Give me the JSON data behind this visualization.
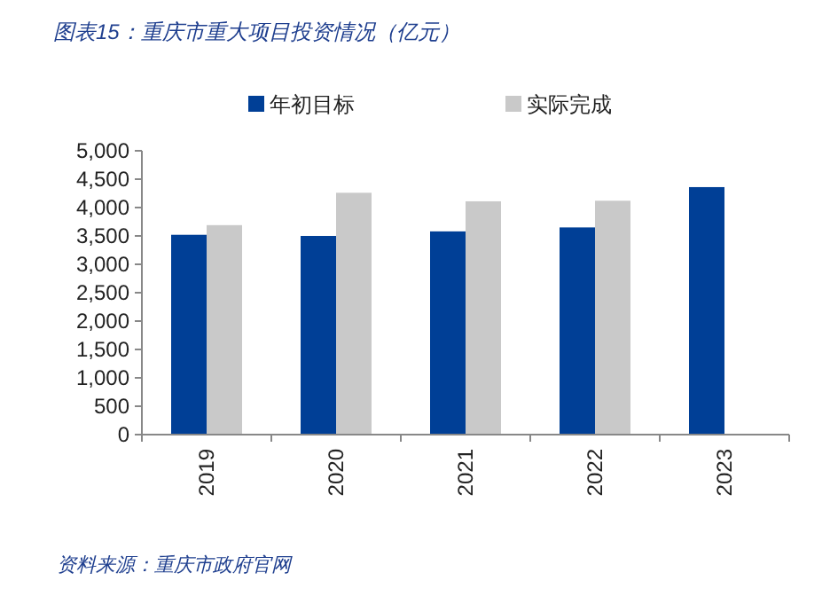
{
  "chart_data": {
    "type": "bar",
    "title": "图表15：重庆市重大项目投资情况（亿元）",
    "categories": [
      "2019",
      "2020",
      "2021",
      "2022",
      "2023"
    ],
    "series": [
      {
        "name": "年初目标",
        "color": "#003f96",
        "values": [
          3520,
          3500,
          3580,
          3650,
          4360
        ]
      },
      {
        "name": "实际完成",
        "color": "#c9c9c9",
        "values": [
          3690,
          4260,
          4110,
          4120,
          null
        ]
      }
    ],
    "ylim": [
      0,
      5000
    ],
    "yticks": [
      0,
      500,
      {
        "value": 1000,
        "label": "1,000"
      },
      {
        "value": 1500,
        "label": "1,500"
      },
      {
        "value": 2000,
        "label": "2,000"
      },
      {
        "value": 2500,
        "label": "2,500"
      },
      {
        "value": 3000,
        "label": "3,000"
      },
      {
        "value": 3500,
        "label": "3,500"
      },
      {
        "value": 4000,
        "label": "4,000"
      },
      {
        "value": 4500,
        "label": "4,500"
      },
      {
        "value": 5000,
        "label": "5,000"
      }
    ],
    "legend": "top",
    "grid": false,
    "annotations": [
      "资料来源：重庆市政府官网"
    ]
  }
}
